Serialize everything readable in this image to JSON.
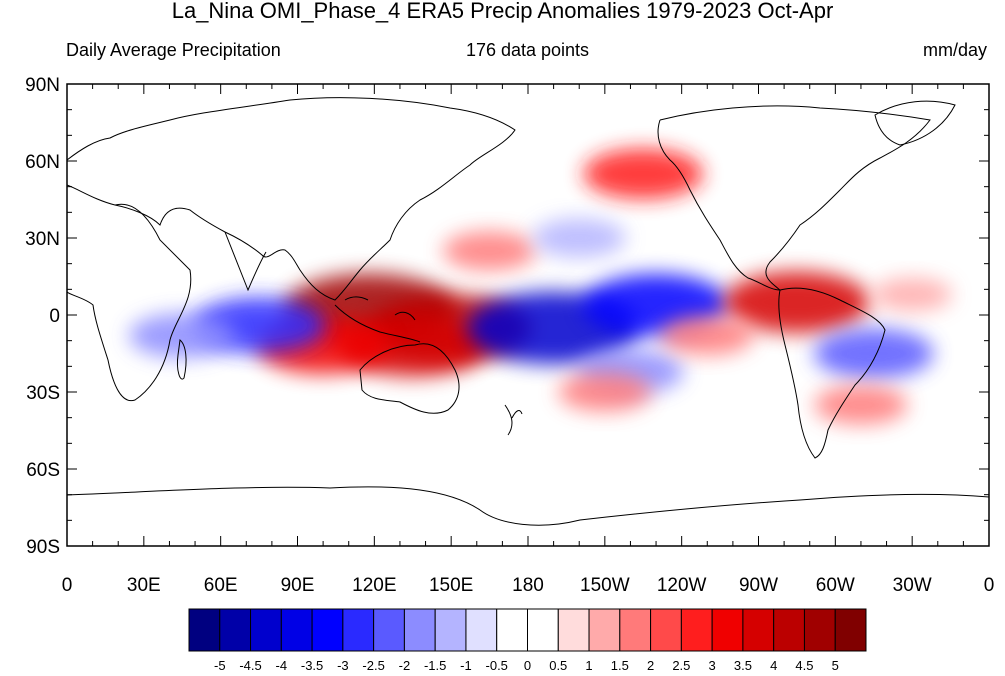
{
  "title": "La_Nina OMI_Phase_4 ERA5 Precip Anomalies 1979-2023 Oct-Apr",
  "subtitle_left": "Daily Average Precipitation",
  "subtitle_center": "176 data points",
  "subtitle_right": "mm/day",
  "lat_labels": [
    "90N",
    "60N",
    "30N",
    "0",
    "30S",
    "60S",
    "90S"
  ],
  "lon_labels": [
    "0",
    "30E",
    "60E",
    "90E",
    "120E",
    "150E",
    "180",
    "150W",
    "120W",
    "90W",
    "60W",
    "30W",
    "0"
  ],
  "colorbar": {
    "colors": [
      "#000080",
      "#0000a8",
      "#0000cd",
      "#0000e6",
      "#0000ff",
      "#2a2aff",
      "#5a5aff",
      "#8c8cff",
      "#b4b4ff",
      "#e0e0ff",
      "#ffffff",
      "#ffffff",
      "#ffdcdc",
      "#ffaaaa",
      "#ff7a7a",
      "#ff4a4a",
      "#ff1e1e",
      "#f00000",
      "#d50000",
      "#bb0000",
      "#a00000",
      "#800000"
    ],
    "labels": [
      "-5",
      "-4.5",
      "-4",
      "-3.5",
      "-3",
      "-2.5",
      "-2",
      "-1.5",
      "-1",
      "-0.5",
      "0",
      "0.5",
      "1",
      "1.5",
      "2",
      "2.5",
      "3",
      "3.5",
      "4",
      "4.5",
      "5"
    ]
  },
  "anomalies": [
    {
      "lon": 118,
      "lat": 2,
      "value": 4.5
    },
    {
      "lon": 150,
      "lat": -5,
      "value": 4.0
    },
    {
      "lon": 135,
      "lat": -12,
      "value": 3.5
    },
    {
      "lon": 100,
      "lat": -12,
      "value": 3.0
    },
    {
      "lon": 190,
      "lat": -5,
      "value": -4.5
    },
    {
      "lon": 230,
      "lat": 4,
      "value": -3.5
    },
    {
      "lon": 285,
      "lat": 5,
      "value": 3.5
    },
    {
      "lon": 75,
      "lat": -4,
      "value": -3.0
    },
    {
      "lon": 45,
      "lat": -8,
      "value": -2.0
    },
    {
      "lon": 220,
      "lat": -22,
      "value": -2.0
    },
    {
      "lon": 315,
      "lat": -15,
      "value": -2.5
    },
    {
      "lon": 210,
      "lat": -30,
      "value": 1.5
    },
    {
      "lon": 165,
      "lat": 25,
      "value": 1.5
    },
    {
      "lon": 225,
      "lat": 55,
      "value": 2.5
    },
    {
      "lon": 200,
      "lat": 30,
      "value": -1.5
    },
    {
      "lon": 310,
      "lat": -35,
      "value": 1.5
    },
    {
      "lon": 250,
      "lat": -8,
      "value": 1.5
    },
    {
      "lon": 330,
      "lat": 8,
      "value": 1.0
    }
  ],
  "colors": {
    "land_line": "#000000",
    "frame": "#000000"
  }
}
